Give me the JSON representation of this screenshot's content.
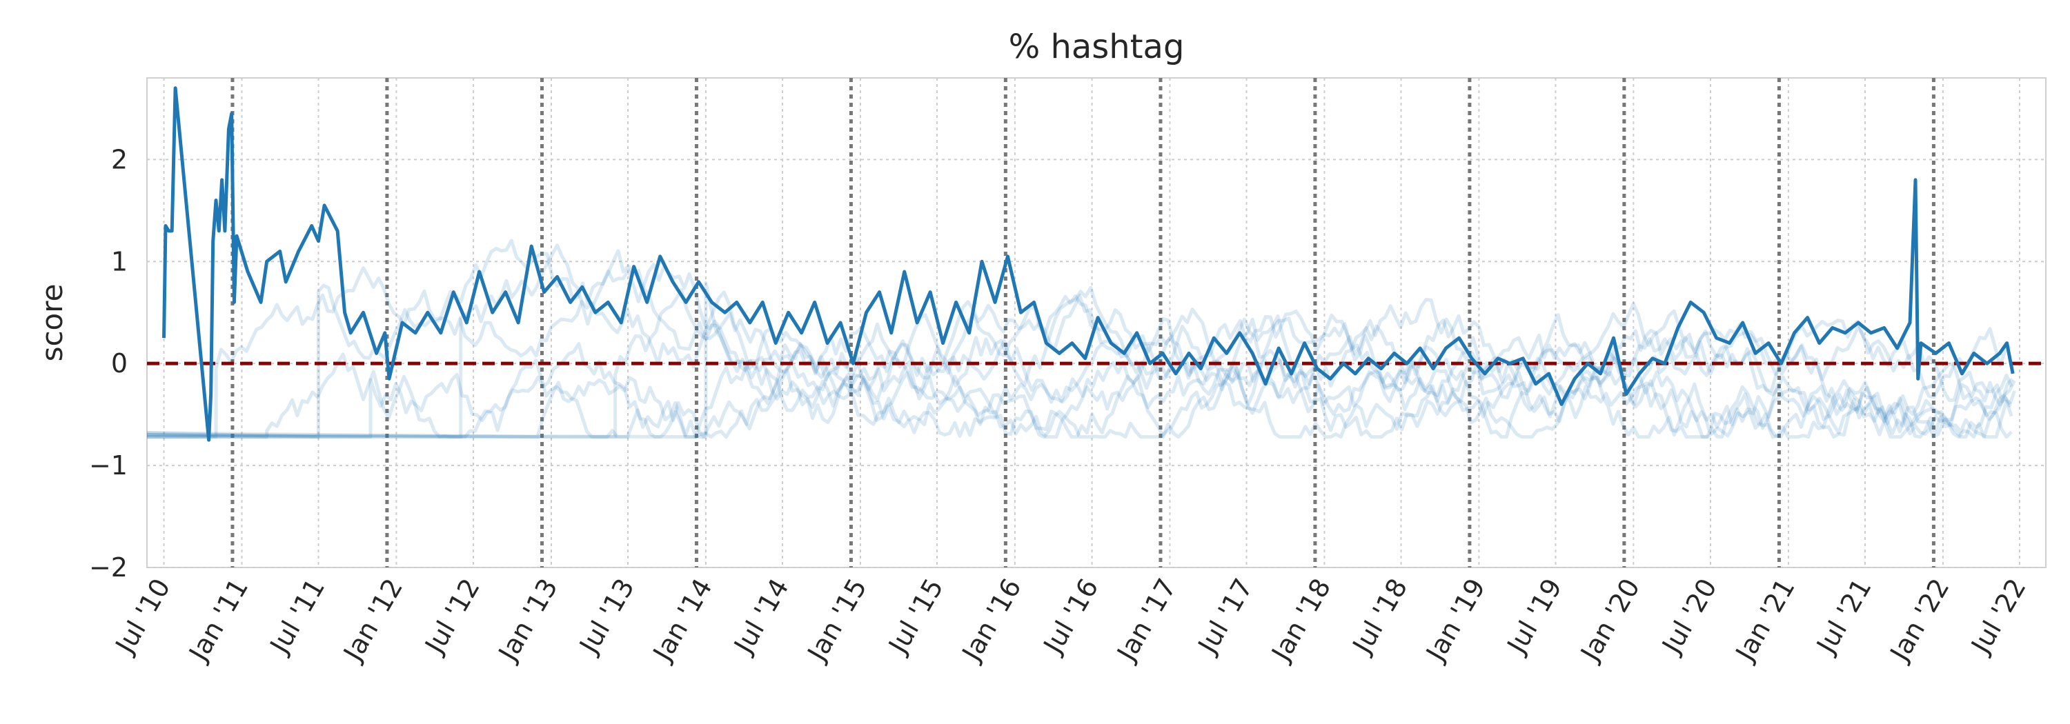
{
  "chart_data": {
    "type": "line",
    "title": "% hashtag",
    "xlabel": "",
    "ylabel": "score",
    "xlim": [
      "2010-05-22",
      "2022-09-01"
    ],
    "ylim": [
      -2,
      2.8
    ],
    "yticks": [
      -2,
      -1,
      0,
      1,
      2
    ],
    "ytick_labels": [
      "−2",
      "−1",
      "0",
      "1",
      "2"
    ],
    "xticks": [
      "2010-07-01",
      "2011-01-01",
      "2011-07-01",
      "2012-01-01",
      "2012-07-01",
      "2013-01-01",
      "2013-07-01",
      "2014-01-01",
      "2014-07-01",
      "2015-01-01",
      "2015-07-01",
      "2016-01-01",
      "2016-07-01",
      "2017-01-01",
      "2017-07-01",
      "2018-01-01",
      "2018-07-01",
      "2019-01-01",
      "2019-07-01",
      "2020-01-01",
      "2020-07-01",
      "2021-01-01",
      "2021-07-01",
      "2022-01-01",
      "2022-07-01"
    ],
    "xtick_labels": [
      "Jul '10",
      "Jan '11",
      "Jul '11",
      "Jan '12",
      "Jul '12",
      "Jan '13",
      "Jul '13",
      "Jan '14",
      "Jul '14",
      "Jan '15",
      "Jul '15",
      "Jan '16",
      "Jul '16",
      "Jan '17",
      "Jul '17",
      "Jan '18",
      "Jul '18",
      "Jan '19",
      "Jul '19",
      "Jan '20",
      "Jul '20",
      "Jan '21",
      "Jul '21",
      "Jan '22",
      "Jul '22"
    ],
    "grid": true,
    "reference_line": {
      "y": 0,
      "color": "#8b0000",
      "style": "dashed"
    },
    "event_lines": [
      "2010-12-10",
      "2011-12-10",
      "2012-12-10",
      "2013-12-10",
      "2014-12-10",
      "2015-12-10",
      "2016-12-10",
      "2017-12-10",
      "2018-12-10",
      "2019-12-10",
      "2020-12-10",
      "2021-12-10"
    ],
    "colors": {
      "main": "#1f77b4",
      "background": "#1f77b4",
      "reference": "#8b0000",
      "event": "#777777",
      "grid": "#cccccc"
    },
    "series": [
      {
        "role": "highlight",
        "points": [
          [
            "2010-07-01",
            0.25
          ],
          [
            "2010-07-05",
            1.35
          ],
          [
            "2010-07-12",
            1.3
          ],
          [
            "2010-07-20",
            1.3
          ],
          [
            "2010-07-28",
            2.7
          ],
          [
            "2010-10-15",
            -0.75
          ],
          [
            "2010-10-20",
            -0.3
          ],
          [
            "2010-10-25",
            1.2
          ],
          [
            "2010-11-01",
            1.6
          ],
          [
            "2010-11-08",
            1.3
          ],
          [
            "2010-11-15",
            1.8
          ],
          [
            "2010-11-22",
            1.3
          ],
          [
            "2010-12-01",
            2.3
          ],
          [
            "2010-12-08",
            2.45
          ],
          [
            "2010-12-14",
            0.6
          ],
          [
            "2010-12-20",
            1.25
          ],
          [
            "2011-01-15",
            0.9
          ],
          [
            "2011-02-15",
            0.6
          ],
          [
            "2011-03-01",
            1.0
          ],
          [
            "2011-04-01",
            1.1
          ],
          [
            "2011-04-15",
            0.8
          ],
          [
            "2011-05-15",
            1.1
          ],
          [
            "2011-06-15",
            1.35
          ],
          [
            "2011-07-01",
            1.2
          ],
          [
            "2011-07-15",
            1.55
          ],
          [
            "2011-08-15",
            1.3
          ],
          [
            "2011-09-01",
            0.5
          ],
          [
            "2011-09-15",
            0.3
          ],
          [
            "2011-10-15",
            0.5
          ],
          [
            "2011-11-15",
            0.1
          ],
          [
            "2011-12-05",
            0.3
          ],
          [
            "2011-12-15",
            -0.15
          ],
          [
            "2012-01-15",
            0.4
          ],
          [
            "2012-02-15",
            0.3
          ],
          [
            "2012-03-15",
            0.5
          ],
          [
            "2012-04-15",
            0.3
          ],
          [
            "2012-05-15",
            0.7
          ],
          [
            "2012-06-15",
            0.4
          ],
          [
            "2012-07-15",
            0.9
          ],
          [
            "2012-08-15",
            0.5
          ],
          [
            "2012-09-15",
            0.7
          ],
          [
            "2012-10-15",
            0.4
          ],
          [
            "2012-11-15",
            1.15
          ],
          [
            "2012-12-15",
            0.7
          ],
          [
            "2013-01-15",
            0.85
          ],
          [
            "2013-02-15",
            0.6
          ],
          [
            "2013-03-15",
            0.75
          ],
          [
            "2013-04-15",
            0.5
          ],
          [
            "2013-05-15",
            0.6
          ],
          [
            "2013-06-15",
            0.4
          ],
          [
            "2013-07-15",
            0.95
          ],
          [
            "2013-08-15",
            0.6
          ],
          [
            "2013-09-15",
            1.05
          ],
          [
            "2013-10-15",
            0.8
          ],
          [
            "2013-11-15",
            0.6
          ],
          [
            "2013-12-15",
            0.8
          ],
          [
            "2014-01-15",
            0.6
          ],
          [
            "2014-02-15",
            0.5
          ],
          [
            "2014-03-15",
            0.6
          ],
          [
            "2014-04-15",
            0.4
          ],
          [
            "2014-05-15",
            0.6
          ],
          [
            "2014-06-15",
            0.2
          ],
          [
            "2014-07-15",
            0.5
          ],
          [
            "2014-08-15",
            0.3
          ],
          [
            "2014-09-15",
            0.6
          ],
          [
            "2014-10-15",
            0.2
          ],
          [
            "2014-11-15",
            0.4
          ],
          [
            "2014-12-15",
            0.0
          ],
          [
            "2015-01-15",
            0.5
          ],
          [
            "2015-02-15",
            0.7
          ],
          [
            "2015-03-15",
            0.3
          ],
          [
            "2015-04-15",
            0.9
          ],
          [
            "2015-05-15",
            0.4
          ],
          [
            "2015-06-15",
            0.7
          ],
          [
            "2015-07-15",
            0.2
          ],
          [
            "2015-08-15",
            0.6
          ],
          [
            "2015-09-15",
            0.3
          ],
          [
            "2015-10-15",
            1.0
          ],
          [
            "2015-11-15",
            0.6
          ],
          [
            "2015-12-15",
            1.05
          ],
          [
            "2016-01-15",
            0.5
          ],
          [
            "2016-02-15",
            0.6
          ],
          [
            "2016-03-15",
            0.2
          ],
          [
            "2016-04-15",
            0.1
          ],
          [
            "2016-05-15",
            0.2
          ],
          [
            "2016-06-15",
            0.05
          ],
          [
            "2016-07-15",
            0.45
          ],
          [
            "2016-08-15",
            0.2
          ],
          [
            "2016-09-15",
            0.1
          ],
          [
            "2016-10-15",
            0.3
          ],
          [
            "2016-11-15",
            0.0
          ],
          [
            "2016-12-15",
            0.1
          ],
          [
            "2017-01-15",
            -0.1
          ],
          [
            "2017-02-15",
            0.1
          ],
          [
            "2017-03-15",
            -0.05
          ],
          [
            "2017-04-15",
            0.25
          ],
          [
            "2017-05-15",
            0.1
          ],
          [
            "2017-06-15",
            0.3
          ],
          [
            "2017-07-15",
            0.1
          ],
          [
            "2017-08-15",
            -0.2
          ],
          [
            "2017-09-15",
            0.15
          ],
          [
            "2017-10-15",
            -0.1
          ],
          [
            "2017-11-15",
            0.2
          ],
          [
            "2017-12-15",
            -0.05
          ],
          [
            "2018-01-15",
            -0.15
          ],
          [
            "2018-02-15",
            0.0
          ],
          [
            "2018-03-15",
            -0.1
          ],
          [
            "2018-04-15",
            0.05
          ],
          [
            "2018-05-15",
            -0.05
          ],
          [
            "2018-06-15",
            0.1
          ],
          [
            "2018-07-15",
            0.0
          ],
          [
            "2018-08-15",
            0.15
          ],
          [
            "2018-09-15",
            -0.05
          ],
          [
            "2018-10-15",
            0.15
          ],
          [
            "2018-11-15",
            0.25
          ],
          [
            "2018-12-15",
            0.05
          ],
          [
            "2019-01-15",
            -0.1
          ],
          [
            "2019-02-15",
            0.05
          ],
          [
            "2019-03-15",
            0.0
          ],
          [
            "2019-04-15",
            0.05
          ],
          [
            "2019-05-15",
            -0.2
          ],
          [
            "2019-06-15",
            -0.1
          ],
          [
            "2019-07-15",
            -0.4
          ],
          [
            "2019-08-15",
            -0.15
          ],
          [
            "2019-09-15",
            0.0
          ],
          [
            "2019-10-15",
            -0.1
          ],
          [
            "2019-11-15",
            0.25
          ],
          [
            "2019-12-15",
            -0.3
          ],
          [
            "2020-01-15",
            -0.1
          ],
          [
            "2020-02-15",
            0.05
          ],
          [
            "2020-03-15",
            0.0
          ],
          [
            "2020-04-15",
            0.35
          ],
          [
            "2020-05-15",
            0.6
          ],
          [
            "2020-06-15",
            0.5
          ],
          [
            "2020-07-15",
            0.25
          ],
          [
            "2020-08-15",
            0.2
          ],
          [
            "2020-09-15",
            0.4
          ],
          [
            "2020-10-15",
            0.1
          ],
          [
            "2020-11-15",
            0.2
          ],
          [
            "2020-12-15",
            0.0
          ],
          [
            "2021-01-15",
            0.3
          ],
          [
            "2021-02-15",
            0.45
          ],
          [
            "2021-03-15",
            0.2
          ],
          [
            "2021-04-15",
            0.35
          ],
          [
            "2021-05-15",
            0.3
          ],
          [
            "2021-06-15",
            0.4
          ],
          [
            "2021-07-15",
            0.3
          ],
          [
            "2021-08-15",
            0.35
          ],
          [
            "2021-09-15",
            0.15
          ],
          [
            "2021-10-15",
            0.4
          ],
          [
            "2021-10-28",
            1.8
          ],
          [
            "2021-11-03",
            -0.15
          ],
          [
            "2021-11-10",
            0.2
          ],
          [
            "2021-12-15",
            0.1
          ],
          [
            "2022-01-15",
            0.2
          ],
          [
            "2022-02-15",
            -0.1
          ],
          [
            "2022-03-15",
            0.1
          ],
          [
            "2022-04-15",
            0.0
          ],
          [
            "2022-05-15",
            0.1
          ],
          [
            "2022-06-01",
            0.2
          ],
          [
            "2022-06-15",
            -0.1
          ]
        ]
      }
    ]
  }
}
